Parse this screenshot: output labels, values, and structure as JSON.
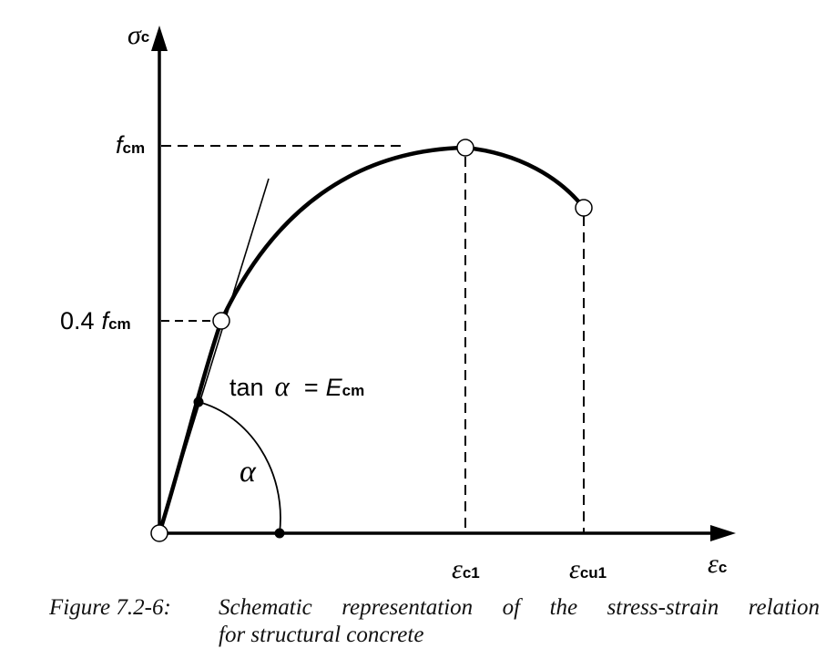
{
  "axes": {
    "y_symbol": "σ",
    "y_sub": "c",
    "x_symbol": "ε",
    "x_sub": "c"
  },
  "labels": {
    "fcm_main": "f",
    "fcm_sub": "cm",
    "fcm04_prefix": "0.4",
    "fcm04_main": "f",
    "fcm04_sub": "cm",
    "tan_text": "tan",
    "alpha": "α",
    "equals": "=",
    "ecm_main": "E",
    "ecm_sub": "cm",
    "angle_alpha": "α",
    "ec1_main": "ε",
    "ec1_sub": "c1",
    "ecu1_main": "ε",
    "ecu1_sub": "cu1"
  },
  "caption": {
    "number": "Figure 7.2-6:",
    "line1": "Schematic representation of the stress-strain relation",
    "line2": "for structural concrete"
  }
}
